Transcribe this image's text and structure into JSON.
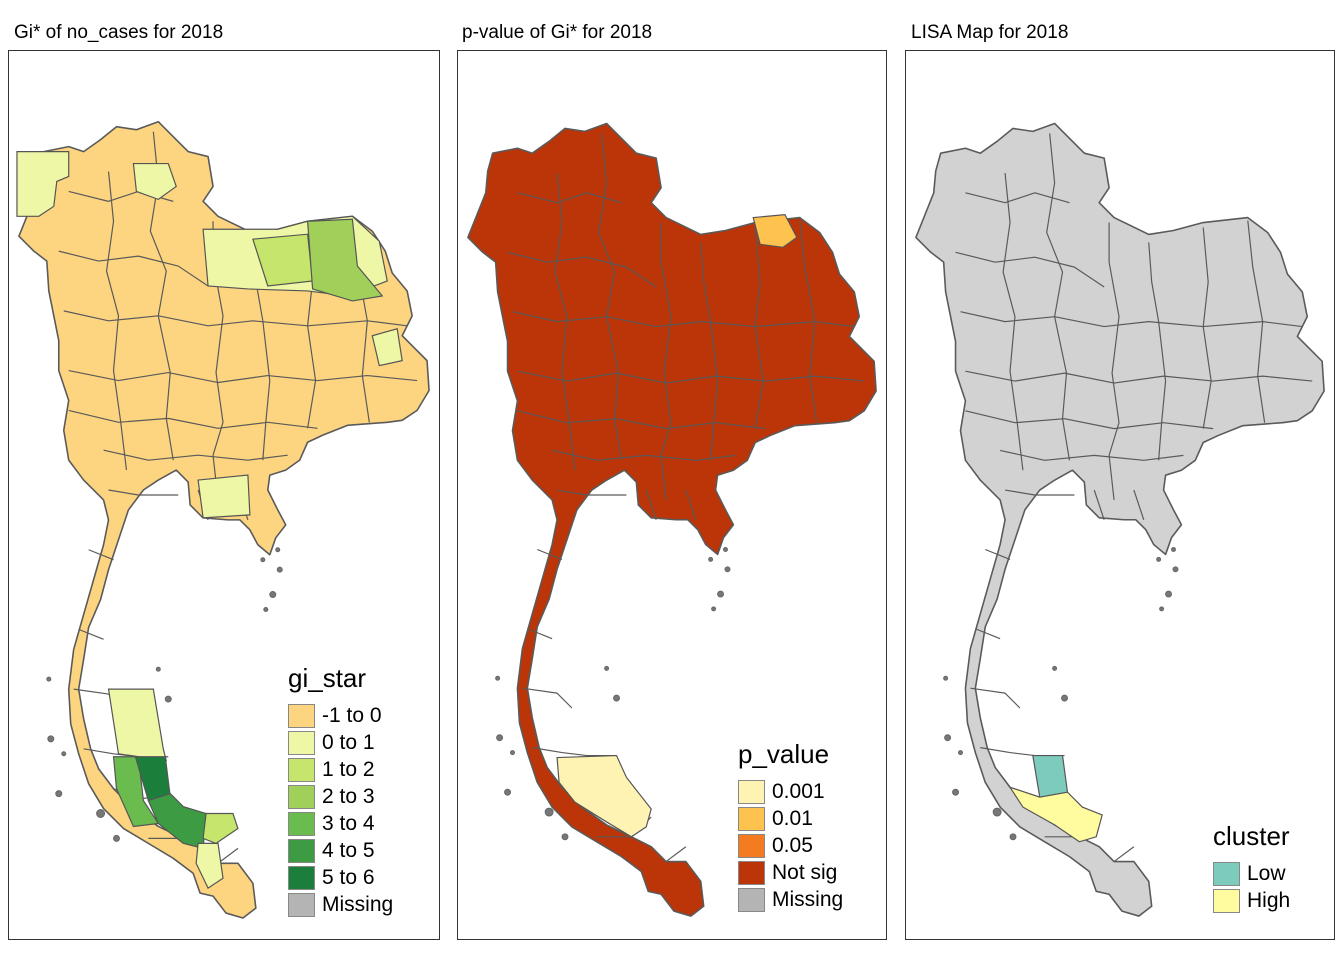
{
  "panels": [
    {
      "title": "Gi* of no_cases for 2018",
      "legend": {
        "title": "gi_star",
        "items": [
          {
            "label": "-1 to 0",
            "color": "#fdd580"
          },
          {
            "label": "0 to 1",
            "color": "#eef7a6"
          },
          {
            "label": "1 to 2",
            "color": "#c6e56c"
          },
          {
            "label": "2 to 3",
            "color": "#a1d05a"
          },
          {
            "label": "3 to 4",
            "color": "#6bbc4f"
          },
          {
            "label": "4 to 5",
            "color": "#3d9c43"
          },
          {
            "label": "5 to 6",
            "color": "#1b7f3b"
          },
          {
            "label": "Missing",
            "color": "#b4b4b4"
          }
        ]
      },
      "base_color": "#fdd580"
    },
    {
      "title": "p-value of Gi* for 2018",
      "legend": {
        "title": "p_value",
        "items": [
          {
            "label": "0.001",
            "color": "#fef3b2"
          },
          {
            "label": "0.01",
            "color": "#fec34f"
          },
          {
            "label": "0.05",
            "color": "#f57b21"
          },
          {
            "label": "Not sig",
            "color": "#bb3508"
          },
          {
            "label": "Missing",
            "color": "#b4b4b4"
          }
        ]
      },
      "base_color": "#bb3508"
    },
    {
      "title": "LISA Map for 2018",
      "legend": {
        "title": "cluster",
        "items": [
          {
            "label": "Low",
            "color": "#7dcbbd"
          },
          {
            "label": "High",
            "color": "#fefc9e"
          }
        ]
      },
      "base_color": "#d2d2d2"
    }
  ]
}
